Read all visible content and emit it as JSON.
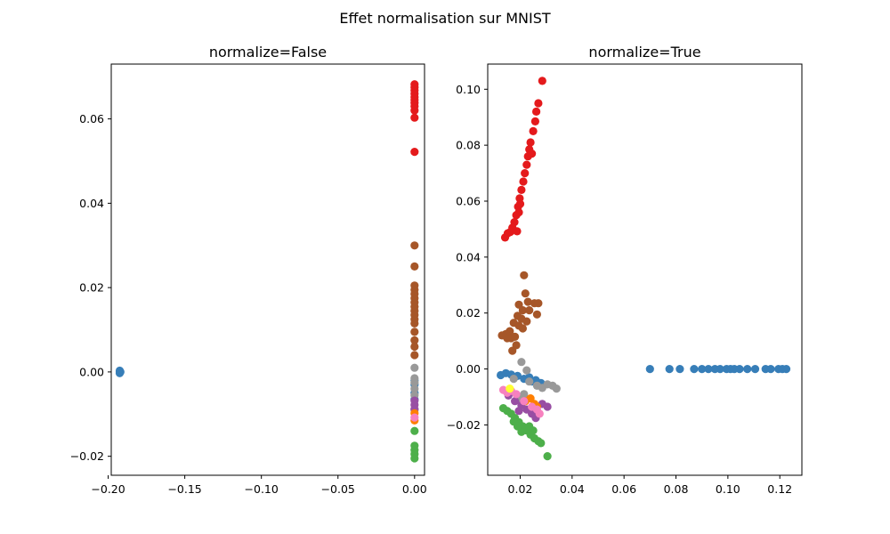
{
  "figure_title": "Effet normalisation sur MNIST",
  "colors": {
    "blue": "#377eb8",
    "red": "#e41a1c",
    "brown": "#a65628",
    "gray": "#999999",
    "purple": "#984ea3",
    "orange": "#ff7f00",
    "pink": "#f781bf",
    "green": "#4daf4a",
    "yellow": "#ffff33"
  },
  "chart_data": [
    {
      "type": "scatter",
      "title": "normalize=False",
      "xlabel": "",
      "ylabel": "",
      "xlim": [
        -0.198,
        0.0065
      ],
      "ylim": [
        -0.0245,
        0.073
      ],
      "xticks": [
        -0.2,
        -0.15,
        -0.1,
        -0.05,
        0.0
      ],
      "xtick_labels": [
        "−0.20",
        "−0.15",
        "−0.10",
        "−0.05",
        "0.00"
      ],
      "yticks": [
        -0.02,
        0.0,
        0.02,
        0.04,
        0.06
      ],
      "ytick_labels": [
        "−0.02",
        "0.00",
        "0.02",
        "0.04",
        "0.06"
      ],
      "grid": false,
      "series": [
        {
          "color_key": "blue",
          "points": [
            [
              -0.1925,
              0.0
            ],
            [
              -0.1925,
              -0.0003
            ],
            [
              -0.1925,
              0.0003
            ],
            [
              -0.192,
              0.0
            ],
            [
              0.0,
              -0.002
            ],
            [
              0.0,
              -0.003
            ],
            [
              0.0,
              -0.005
            ],
            [
              0.0,
              -0.0065
            ]
          ]
        },
        {
          "color_key": "red",
          "points": [
            [
              0.0,
              0.0682
            ],
            [
              0.0,
              0.0675
            ],
            [
              0.0,
              0.0668
            ],
            [
              0.0,
              0.066
            ],
            [
              0.0,
              0.0652
            ],
            [
              0.0,
              0.0645
            ],
            [
              0.0,
              0.0638
            ],
            [
              0.0,
              0.063
            ],
            [
              0.0,
              0.062
            ],
            [
              0.0,
              0.0603
            ],
            [
              0.0,
              0.0522
            ]
          ]
        },
        {
          "color_key": "brown",
          "points": [
            [
              0.0,
              0.03
            ],
            [
              0.0,
              0.025
            ],
            [
              0.0,
              0.0205
            ],
            [
              0.0,
              0.0195
            ],
            [
              0.0,
              0.0185
            ],
            [
              0.0,
              0.0175
            ],
            [
              0.0,
              0.0165
            ],
            [
              0.0,
              0.0155
            ],
            [
              0.0,
              0.0145
            ],
            [
              0.0,
              0.0135
            ],
            [
              0.0,
              0.0125
            ],
            [
              0.0,
              0.0115
            ],
            [
              0.0,
              0.0095
            ],
            [
              0.0,
              0.0075
            ],
            [
              0.0,
              0.006
            ],
            [
              0.0,
              0.004
            ]
          ]
        },
        {
          "color_key": "gray",
          "points": [
            [
              0.0,
              0.001
            ],
            [
              0.0,
              -0.0015
            ],
            [
              0.0,
              -0.0025
            ],
            [
              0.0,
              -0.004
            ],
            [
              0.0,
              -0.0055
            ],
            [
              0.0,
              -0.009
            ]
          ]
        },
        {
          "color_key": "purple",
          "points": [
            [
              0.0,
              -0.0068
            ],
            [
              0.0,
              -0.0078
            ],
            [
              0.0,
              -0.0088
            ]
          ]
        },
        {
          "color_key": "orange",
          "points": [
            [
              0.0,
              -0.0098
            ],
            [
              0.0,
              -0.0115
            ]
          ]
        },
        {
          "color_key": "pink",
          "points": [
            [
              0.0,
              -0.0108
            ]
          ]
        },
        {
          "color_key": "green",
          "points": [
            [
              0.0,
              -0.014
            ],
            [
              0.0,
              -0.0175
            ],
            [
              0.0,
              -0.0185
            ],
            [
              0.0,
              -0.0195
            ],
            [
              0.0,
              -0.0205
            ]
          ]
        }
      ]
    },
    {
      "type": "scatter",
      "title": "normalize=True",
      "xlabel": "",
      "ylabel": "",
      "xlim": [
        0.0075,
        0.1285
      ],
      "ylim": [
        -0.038,
        0.109
      ],
      "xticks": [
        0.02,
        0.04,
        0.06,
        0.08,
        0.1,
        0.12
      ],
      "xtick_labels": [
        "0.02",
        "0.04",
        "0.06",
        "0.08",
        "0.10",
        "0.12"
      ],
      "yticks": [
        -0.02,
        0.0,
        0.02,
        0.04,
        0.06,
        0.08,
        0.1
      ],
      "ytick_labels": [
        "−0.02",
        "0.00",
        "0.02",
        "0.04",
        "0.06",
        "0.08",
        "0.10"
      ],
      "grid": false,
      "series": [
        {
          "color_key": "red",
          "points": [
            [
              0.0285,
              0.103
            ],
            [
              0.027,
              0.095
            ],
            [
              0.0262,
              0.092
            ],
            [
              0.0258,
              0.0885
            ],
            [
              0.025,
              0.085
            ],
            [
              0.024,
              0.081
            ],
            [
              0.0235,
              0.0785
            ],
            [
              0.023,
              0.076
            ],
            [
              0.0245,
              0.077
            ],
            [
              0.0225,
              0.073
            ],
            [
              0.0218,
              0.07
            ],
            [
              0.0212,
              0.067
            ],
            [
              0.0205,
              0.064
            ],
            [
              0.0198,
              0.061
            ],
            [
              0.0192,
              0.058
            ],
            [
              0.0185,
              0.055
            ],
            [
              0.0178,
              0.0525
            ],
            [
              0.017,
              0.0505
            ],
            [
              0.0162,
              0.049
            ],
            [
              0.0152,
              0.0485
            ],
            [
              0.0142,
              0.047
            ],
            [
              0.0188,
              0.0492
            ],
            [
              0.0195,
              0.056
            ],
            [
              0.02,
              0.059
            ]
          ]
        },
        {
          "color_key": "brown",
          "points": [
            [
              0.0215,
              0.0335
            ],
            [
              0.022,
              0.027
            ],
            [
              0.023,
              0.024
            ],
            [
              0.0195,
              0.023
            ],
            [
              0.0255,
              0.0235
            ],
            [
              0.027,
              0.0235
            ],
            [
              0.021,
              0.021
            ],
            [
              0.0235,
              0.021
            ],
            [
              0.0265,
              0.0195
            ],
            [
              0.019,
              0.019
            ],
            [
              0.0205,
              0.018
            ],
            [
              0.0225,
              0.017
            ],
            [
              0.0175,
              0.0165
            ],
            [
              0.0195,
              0.0155
            ],
            [
              0.021,
              0.0145
            ],
            [
              0.016,
              0.0135
            ],
            [
              0.0145,
              0.0125
            ],
            [
              0.013,
              0.012
            ],
            [
              0.015,
              0.011
            ],
            [
              0.0165,
              0.011
            ],
            [
              0.018,
              0.0115
            ],
            [
              0.0185,
              0.0085
            ],
            [
              0.017,
              0.0065
            ]
          ]
        },
        {
          "color_key": "blue",
          "points": [
            [
              0.07,
              0.0
            ],
            [
              0.0775,
              0.0
            ],
            [
              0.0815,
              0.0
            ],
            [
              0.087,
              0.0
            ],
            [
              0.09,
              0.0
            ],
            [
              0.0925,
              0.0
            ],
            [
              0.095,
              0.0
            ],
            [
              0.097,
              0.0
            ],
            [
              0.0995,
              0.0
            ],
            [
              0.101,
              0.0
            ],
            [
              0.1025,
              0.0
            ],
            [
              0.1045,
              0.0
            ],
            [
              0.1075,
              0.0
            ],
            [
              0.1105,
              0.0
            ],
            [
              0.1145,
              0.0
            ],
            [
              0.1165,
              0.0
            ],
            [
              0.1195,
              0.0
            ],
            [
              0.121,
              0.0
            ],
            [
              0.1225,
              0.0
            ],
            [
              0.0125,
              -0.0022
            ],
            [
              0.0145,
              -0.0015
            ],
            [
              0.0165,
              -0.002
            ],
            [
              0.019,
              -0.0025
            ],
            [
              0.0215,
              -0.0035
            ],
            [
              0.0235,
              -0.003
            ],
            [
              0.0245,
              -0.0045
            ],
            [
              0.026,
              -0.004
            ],
            [
              0.028,
              -0.005
            ]
          ]
        },
        {
          "color_key": "gray",
          "points": [
            [
              0.0205,
              0.0025
            ],
            [
              0.0175,
              -0.0035
            ],
            [
              0.0225,
              -0.0005
            ],
            [
              0.0235,
              -0.0045
            ],
            [
              0.0265,
              -0.006
            ],
            [
              0.0285,
              -0.0068
            ],
            [
              0.0305,
              -0.0055
            ],
            [
              0.0325,
              -0.006
            ],
            [
              0.034,
              -0.007
            ],
            [
              0.0215,
              -0.009
            ],
            [
              0.0195,
              -0.0105
            ]
          ]
        },
        {
          "color_key": "purple",
          "points": [
            [
              0.0155,
              -0.0095
            ],
            [
              0.018,
              -0.0115
            ],
            [
              0.0205,
              -0.013
            ],
            [
              0.0225,
              -0.0145
            ],
            [
              0.0245,
              -0.016
            ],
            [
              0.026,
              -0.0175
            ],
            [
              0.0285,
              -0.0125
            ],
            [
              0.0305,
              -0.0135
            ],
            [
              0.0195,
              -0.015
            ]
          ]
        },
        {
          "color_key": "orange",
          "points": [
            [
              0.022,
              -0.0115
            ],
            [
              0.024,
              -0.0105
            ],
            [
              0.0255,
              -0.0125
            ],
            [
              0.0265,
              -0.0135
            ]
          ]
        },
        {
          "color_key": "pink",
          "points": [
            [
              0.0135,
              -0.0075
            ],
            [
              0.015,
              -0.0085
            ],
            [
              0.0165,
              -0.0078
            ],
            [
              0.0185,
              -0.009
            ],
            [
              0.0215,
              -0.0115
            ],
            [
              0.0245,
              -0.0135
            ],
            [
              0.0265,
              -0.0145
            ],
            [
              0.0275,
              -0.016
            ]
          ]
        },
        {
          "color_key": "yellow",
          "points": [
            [
              0.016,
              -0.007
            ]
          ]
        },
        {
          "color_key": "green",
          "points": [
            [
              0.0135,
              -0.014
            ],
            [
              0.015,
              -0.015
            ],
            [
              0.0165,
              -0.016
            ],
            [
              0.018,
              -0.0175
            ],
            [
              0.0195,
              -0.019
            ],
            [
              0.021,
              -0.0205
            ],
            [
              0.0225,
              -0.022
            ],
            [
              0.024,
              -0.0235
            ],
            [
              0.0255,
              -0.0248
            ],
            [
              0.027,
              -0.0258
            ],
            [
              0.028,
              -0.0265
            ],
            [
              0.0205,
              -0.0225
            ],
            [
              0.019,
              -0.0205
            ],
            [
              0.0175,
              -0.0188
            ],
            [
              0.0235,
              -0.0205
            ],
            [
              0.025,
              -0.022
            ],
            [
              0.0305,
              -0.0312
            ]
          ]
        }
      ]
    }
  ]
}
